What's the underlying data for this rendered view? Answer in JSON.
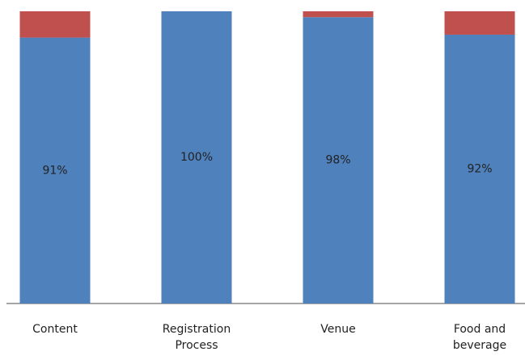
{
  "chart_data": {
    "type": "stacked_bar",
    "categories": [
      "Content",
      "Registration Process",
      "Venue",
      "Food and beverage"
    ],
    "series": [
      {
        "color": "#4f81bd",
        "values": [
          91,
          100,
          98,
          92
        ],
        "value_labels": [
          "91%",
          "100%",
          "98%",
          "92%"
        ]
      },
      {
        "color": "#c0504d",
        "values": [
          9,
          0,
          2,
          8
        ]
      }
    ],
    "ylim": [
      0,
      100
    ]
  }
}
